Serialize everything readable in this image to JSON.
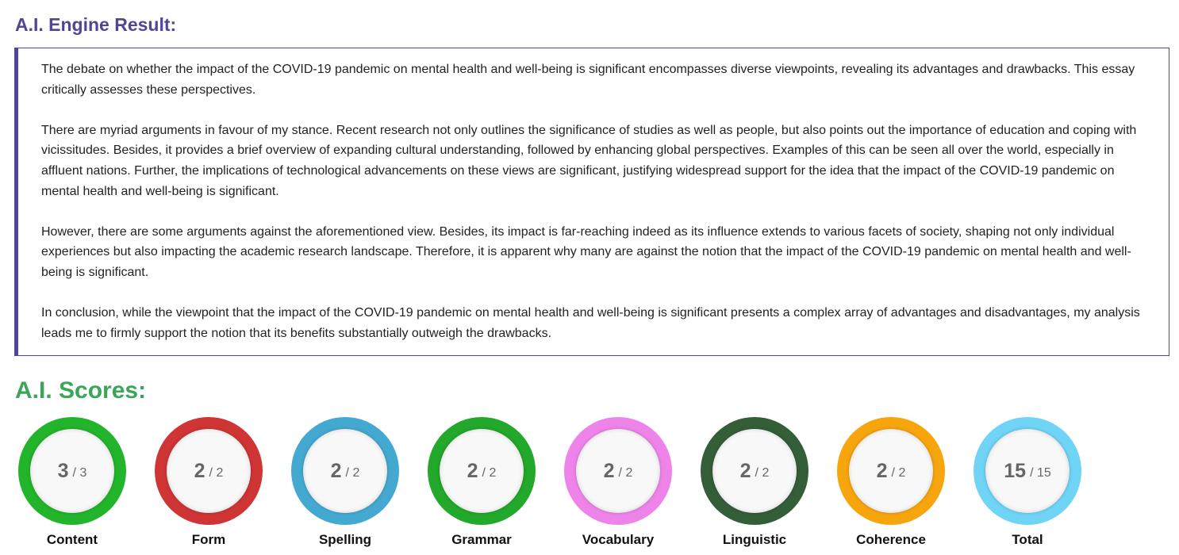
{
  "header": {
    "title": "A.I. Engine Result:"
  },
  "essay": {
    "paragraphs": [
      "The debate on whether the impact of the COVID-19 pandemic on mental health and well-being is significant encompasses diverse viewpoints, revealing its advantages and drawbacks. This essay critically assesses these perspectives.",
      "There are myriad arguments in favour of my stance. Recent research not only outlines the significance of studies as well as people, but also points out the importance of education and coping with vicissitudes. Besides, it provides a brief overview of expanding cultural understanding, followed by enhancing global perspectives. Examples of this can be seen all over the world, especially in affluent nations. Further, the implications of technological advancements on these views are significant, justifying widespread support for the idea that the impact of the COVID-19 pandemic on mental health and well-being is significant.",
      "However, there are some arguments against the aforementioned view. Besides, its impact is far-reaching indeed as its influence extends to various facets of society, shaping not only individual experiences but also impacting the academic research landscape. Therefore, it is apparent why many are against the notion that the impact of the COVID-19 pandemic on mental health and well-being is significant.",
      "In conclusion, while the viewpoint that the impact of the COVID-19 pandemic on mental health and well-being is significant presents a complex array of advantages and disadvantages, my analysis leads me to firmly support the notion that its benefits substantially outweigh the drawbacks."
    ]
  },
  "scores": {
    "title": "A.I. Scores:",
    "items": [
      {
        "score": "3",
        "out_of": "/ 3",
        "label": "Content",
        "color": "#22b52b"
      },
      {
        "score": "2",
        "out_of": "/ 2",
        "label": "Form",
        "color": "#cf3535"
      },
      {
        "score": "2",
        "out_of": "/ 2",
        "label": "Spelling",
        "color": "#44a9d0"
      },
      {
        "score": "2",
        "out_of": "/ 2",
        "label": "Grammar",
        "color": "#22a82b"
      },
      {
        "score": "2",
        "out_of": "/ 2",
        "label": "Vocabulary",
        "color": "#ee84e9"
      },
      {
        "score": "2",
        "out_of": "/ 2",
        "label": "Linguistic",
        "color": "#345e38"
      },
      {
        "score": "2",
        "out_of": "/ 2",
        "label": "Coherence",
        "color": "#f7a50c"
      },
      {
        "score": "15",
        "out_of": "/ 15",
        "label": "Total",
        "color": "#6fd4f6"
      }
    ]
  }
}
